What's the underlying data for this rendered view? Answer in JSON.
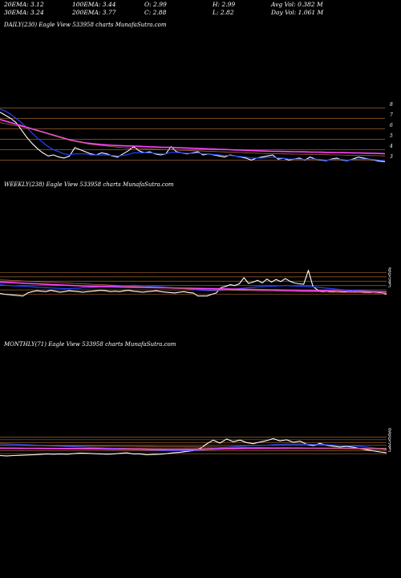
{
  "stats": {
    "ema20": "20EMA: 3.12",
    "ema100": "100EMA: 3.44",
    "open": "O: 2.99",
    "high": "H: 2.99",
    "avg_vol": "Avg Vol: 0.382  M",
    "ema30": "30EMA: 3.24",
    "ema200": "200EMA: 3.77",
    "close": "C: 2.88",
    "low": "L: 2.82",
    "day_vol": "Day Vol: 1.061  M"
  },
  "panels": {
    "daily_title": "DAILY(230) Eagle  View  533958  charts MunafaSutra.com",
    "weekly_title": "WEEKLY(238) Eagle  View  533958  charts MunafaSutra.com",
    "monthly_title": "MONTHLY(71) Eagle  View  533958  charts MunafaSutra.com"
  },
  "colors": {
    "price": "#ffffff",
    "ema_blue": "#2244ff",
    "ema_magenta": "#ff44ff",
    "ema_slow": "#aa6644",
    "level_line": "#a0622a",
    "background": "#000000"
  },
  "chart_data": [
    {
      "type": "line",
      "title": "DAILY(230) Eagle  View  533958  charts MunafaSutra.com",
      "y_ticks": [
        "8",
        "7",
        "6",
        "5",
        "4",
        "3"
      ],
      "ylim": [
        2.5,
        8.5
      ],
      "levels": [
        8,
        7,
        6,
        5,
        4,
        3
      ],
      "series": [
        {
          "key": "price",
          "color": "#ffffff",
          "values": [
            7.6,
            7.3,
            7.0,
            6.6,
            5.9,
            5.2,
            4.6,
            4.1,
            3.7,
            3.4,
            3.5,
            3.3,
            3.2,
            3.4,
            4.2,
            4.0,
            3.8,
            3.6,
            3.5,
            3.7,
            3.6,
            3.4,
            3.3,
            3.6,
            3.9,
            4.3,
            3.9,
            3.7,
            3.8,
            3.6,
            3.5,
            3.6,
            4.3,
            3.8,
            3.7,
            3.6,
            3.7,
            3.8,
            3.5,
            3.6,
            3.5,
            3.4,
            3.3,
            3.5,
            3.4,
            3.3,
            3.2,
            3.0,
            3.2,
            3.3,
            3.4,
            3.5,
            3.1,
            3.2,
            3.0,
            3.1,
            3.2,
            3.0,
            3.3,
            3.1,
            3.0,
            2.95,
            3.1,
            3.2,
            3.0,
            2.95,
            3.1,
            3.3,
            3.2,
            3.1,
            3.0,
            2.9,
            2.85
          ]
        },
        {
          "key": "ema_fast",
          "color": "#2244ff",
          "values": [
            7.9,
            7.7,
            7.4,
            7.0,
            6.6,
            6.1,
            5.6,
            5.1,
            4.7,
            4.3,
            4.0,
            3.8,
            3.6,
            3.5,
            3.6,
            3.6,
            3.6,
            3.5,
            3.5,
            3.5,
            3.5,
            3.45,
            3.4,
            3.45,
            3.55,
            3.7,
            3.7,
            3.7,
            3.7,
            3.65,
            3.6,
            3.6,
            3.75,
            3.75,
            3.7,
            3.65,
            3.65,
            3.7,
            3.6,
            3.6,
            3.55,
            3.5,
            3.45,
            3.45,
            3.4,
            3.35,
            3.3,
            3.2,
            3.2,
            3.2,
            3.25,
            3.3,
            3.2,
            3.2,
            3.1,
            3.1,
            3.1,
            3.05,
            3.1,
            3.1,
            3.05,
            3.0,
            3.05,
            3.1,
            3.05,
            3.0,
            3.05,
            3.1,
            3.1,
            3.1,
            3.05,
            3.0,
            2.95
          ]
        },
        {
          "key": "ema_mid",
          "color": "#ff44ff",
          "values": [
            6.9,
            6.75,
            6.6,
            6.45,
            6.3,
            6.15,
            6.0,
            5.85,
            5.7,
            5.55,
            5.4,
            5.25,
            5.1,
            4.95,
            4.85,
            4.75,
            4.65,
            4.6,
            4.55,
            4.5,
            4.45,
            4.42,
            4.4,
            4.38,
            4.36,
            4.35,
            4.33,
            4.3,
            4.28,
            4.26,
            4.24,
            4.22,
            4.22,
            4.2,
            4.18,
            4.16,
            4.14,
            4.12,
            4.1,
            4.08,
            4.06,
            4.04,
            4.02,
            4.0,
            3.98,
            3.96,
            3.94,
            3.92,
            3.9,
            3.88,
            3.86,
            3.85,
            3.84,
            3.83,
            3.82,
            3.81,
            3.8,
            3.79,
            3.78,
            3.77,
            3.76,
            3.75,
            3.74,
            3.73,
            3.72,
            3.71,
            3.7,
            3.69,
            3.68,
            3.67,
            3.66,
            3.64,
            3.62
          ]
        },
        {
          "key": "ema_slow",
          "color": "#aa6644",
          "values": [
            6.6,
            6.5,
            6.4,
            6.3,
            6.2,
            6.1,
            5.95,
            5.8,
            5.65,
            5.5,
            5.35,
            5.2,
            5.05,
            4.9,
            4.8,
            4.7,
            4.6,
            4.5,
            4.45,
            4.4,
            4.35,
            4.3,
            4.25,
            4.2,
            4.17,
            4.15,
            4.12,
            4.1,
            4.08,
            4.05,
            4.02,
            4.0,
            3.99,
            3.97,
            3.95,
            3.93,
            3.91,
            3.89,
            3.87,
            3.85,
            3.83,
            3.81,
            3.79,
            3.77,
            3.75,
            3.73,
            3.71,
            3.69,
            3.67,
            3.65,
            3.63,
            3.62,
            3.61,
            3.6,
            3.59,
            3.58,
            3.57,
            3.56,
            3.55,
            3.54,
            3.53,
            3.52,
            3.51,
            3.5,
            3.49,
            3.48,
            3.47,
            3.46,
            3.45,
            3.44,
            3.43,
            3.42,
            3.41
          ]
        }
      ]
    },
    {
      "type": "line",
      "title": "WEEKLY(238) Eagle  View  533958  charts MunafaSutra.com",
      "y_ticks": [
        "8",
        "6",
        "5",
        "4",
        "3"
      ],
      "ylim": [
        2.0,
        9.0
      ],
      "levels": [
        8,
        7,
        6,
        5,
        4,
        3
      ],
      "series": [
        {
          "key": "price",
          "color": "#ffffff",
          "values": [
            3.2,
            3.0,
            2.9,
            2.8,
            2.7,
            2.6,
            3.3,
            3.6,
            3.8,
            3.7,
            3.6,
            3.9,
            3.7,
            3.5,
            3.6,
            3.8,
            3.7,
            3.6,
            3.5,
            3.6,
            3.7,
            3.8,
            3.9,
            3.8,
            3.6,
            3.7,
            3.6,
            3.8,
            3.9,
            3.7,
            3.6,
            3.5,
            3.6,
            3.7,
            3.8,
            3.6,
            3.5,
            3.4,
            3.3,
            3.5,
            3.6,
            3.4,
            3.3,
            2.6,
            2.6,
            2.6,
            3.0,
            3.3,
            4.5,
            4.8,
            5.2,
            5.0,
            5.4,
            6.8,
            5.5,
            5.8,
            6.2,
            5.6,
            6.5,
            5.8,
            6.4,
            5.9,
            6.6,
            6.0,
            5.6,
            5.4,
            5.3,
            8.5,
            4.8,
            4.0,
            3.6,
            3.8,
            3.5,
            3.7,
            3.6,
            3.5,
            3.8,
            3.6,
            3.7,
            3.5,
            3.4,
            3.6,
            3.5,
            3.3,
            3.0
          ]
        },
        {
          "key": "ema_fast",
          "color": "#2244ff",
          "values": [
            5.2,
            5.1,
            5.0,
            4.95,
            4.9,
            4.85,
            4.8,
            4.7,
            4.6,
            4.55,
            4.5,
            4.45,
            4.4,
            4.35,
            4.3,
            4.3,
            4.35,
            4.4,
            4.5,
            4.55,
            4.6,
            4.65,
            4.7,
            4.75,
            4.8,
            4.85,
            4.9,
            4.95,
            5.0,
            5.05,
            5.0,
            4.95,
            4.9,
            4.85,
            4.8,
            4.7,
            4.6,
            4.5,
            4.4,
            4.35,
            4.3,
            4.2,
            4.1,
            4.0,
            3.9,
            3.85,
            3.8,
            3.85,
            3.9,
            4.0,
            4.1,
            4.2,
            4.3,
            4.4,
            4.5,
            4.6,
            4.7,
            4.75,
            4.8,
            4.85,
            4.9,
            4.95,
            5.0,
            4.95,
            4.9,
            4.85,
            4.8,
            4.75,
            4.7,
            4.6,
            4.5,
            4.4,
            4.3,
            4.2,
            4.1,
            4.0,
            3.95,
            3.9,
            3.85,
            3.8,
            3.75,
            3.7,
            3.65,
            3.6,
            3.55
          ]
        },
        {
          "key": "ema_mid",
          "color": "#ff44ff",
          "values": [
            5.8,
            5.75,
            5.7,
            5.65,
            5.6,
            5.55,
            5.5,
            5.45,
            5.4,
            5.35,
            5.3,
            5.25,
            5.2,
            5.15,
            5.1,
            5.05,
            5.0,
            4.95,
            4.9,
            4.85,
            4.8,
            4.78,
            4.76,
            4.74,
            4.72,
            4.7,
            4.68,
            4.66,
            4.64,
            4.62,
            4.6,
            4.58,
            4.56,
            4.54,
            4.52,
            4.5,
            4.48,
            4.46,
            4.44,
            4.42,
            4.4,
            4.38,
            4.36,
            4.34,
            4.32,
            4.3,
            4.28,
            4.26,
            4.24,
            4.22,
            4.2,
            4.18,
            4.16,
            4.14,
            4.12,
            4.1,
            4.08,
            4.06,
            4.04,
            4.02,
            4.0,
            3.98,
            3.96,
            3.94,
            3.92,
            3.9,
            3.88,
            3.86,
            3.84,
            3.82,
            3.8,
            3.78,
            3.76,
            3.74,
            3.72,
            3.7,
            3.68,
            3.66,
            3.64,
            3.62,
            3.6,
            3.58,
            3.56,
            3.54,
            3.52
          ]
        },
        {
          "key": "ema_slow",
          "color": "#aa6644",
          "values": [
            6.3,
            6.25,
            6.2,
            6.15,
            6.1,
            6.05,
            6.0,
            5.95,
            5.9,
            5.85,
            5.8,
            5.75,
            5.7,
            5.65,
            5.6,
            5.55,
            5.5,
            5.45,
            5.4,
            5.35,
            5.3,
            5.25,
            5.2,
            5.15,
            5.1,
            5.05,
            5.0,
            4.95,
            4.9,
            4.85,
            4.8,
            4.75,
            4.7,
            4.65,
            4.6,
            4.55,
            4.5,
            4.45,
            4.4,
            4.35,
            4.3,
            4.25,
            4.2,
            4.15,
            4.1,
            4.05,
            4.0,
            3.98,
            3.96,
            3.94,
            3.92,
            3.9,
            3.88,
            3.86,
            3.84,
            3.82,
            3.8,
            3.78,
            3.76,
            3.74,
            3.72,
            3.7,
            3.68,
            3.66,
            3.64,
            3.62,
            3.6,
            3.58,
            3.56,
            3.54,
            3.52,
            3.5,
            3.48,
            3.46,
            3.44,
            3.42,
            3.4,
            3.38,
            3.36,
            3.34,
            3.32,
            3.3,
            3.28,
            3.26,
            3.24
          ]
        }
      ]
    },
    {
      "type": "line",
      "title": "MONTHLY(71) Eagle  View  533958  charts MunafaSutra.com",
      "y_ticks": [
        "9",
        "8",
        "6",
        "5",
        "4",
        "3"
      ],
      "ylim": [
        1.0,
        12.0
      ],
      "levels": [
        9,
        8,
        7,
        6,
        5,
        4,
        3
      ],
      "series": [
        {
          "key": "price",
          "color": "#ffffff",
          "values": [
            2.3,
            2.2,
            2.3,
            2.4,
            2.5,
            2.6,
            2.7,
            2.9,
            2.8,
            2.9,
            2.8,
            3.0,
            3.2,
            3.1,
            3.0,
            2.9,
            2.8,
            2.9,
            3.1,
            3.3,
            2.9,
            2.9,
            2.6,
            2.7,
            2.8,
            3.0,
            3.3,
            3.5,
            3.8,
            4.1,
            4.8,
            6.5,
            7.9,
            6.8,
            8.3,
            7.3,
            7.9,
            7.0,
            6.6,
            7.2,
            7.7,
            8.4,
            7.6,
            8.0,
            7.1,
            7.5,
            6.4,
            5.9,
            6.7,
            6.0,
            5.7,
            5.4,
            5.6,
            5.3,
            4.8,
            4.4,
            4.0,
            3.6,
            3.3
          ]
        },
        {
          "key": "ema_fast",
          "color": "#2244ff",
          "values": [
            6.6,
            6.5,
            6.4,
            6.3,
            6.2,
            6.1,
            6.0,
            5.9,
            5.8,
            5.7,
            5.6,
            5.5,
            5.4,
            5.3,
            5.2,
            5.1,
            5.0,
            4.9,
            4.8,
            4.7,
            4.6,
            4.5,
            4.4,
            4.3,
            4.2,
            4.15,
            4.1,
            4.1,
            4.15,
            4.2,
            4.3,
            4.5,
            4.8,
            5.0,
            5.3,
            5.5,
            5.7,
            5.8,
            5.85,
            5.9,
            6.0,
            6.2,
            6.3,
            6.4,
            6.4,
            6.45,
            6.4,
            6.3,
            6.3,
            6.2,
            6.1,
            6.0,
            5.9,
            5.8,
            5.6,
            5.4,
            5.1,
            4.8,
            4.4
          ]
        },
        {
          "key": "ema_mid",
          "color": "#ff44ff",
          "values": [
            5.0,
            4.98,
            4.96,
            4.94,
            4.92,
            4.9,
            4.88,
            4.86,
            4.84,
            4.82,
            4.8,
            4.78,
            4.76,
            4.74,
            4.72,
            4.7,
            4.68,
            4.66,
            4.64,
            4.62,
            4.6,
            4.58,
            4.56,
            4.54,
            4.52,
            4.5,
            4.5,
            4.5,
            4.52,
            4.54,
            4.56,
            4.6,
            4.65,
            4.7,
            4.75,
            4.8,
            4.85,
            4.9,
            4.92,
            4.94,
            4.96,
            4.98,
            5.0,
            5.0,
            5.0,
            5.0,
            4.98,
            4.96,
            4.94,
            4.92,
            4.9,
            4.88,
            4.86,
            4.84,
            4.82,
            4.8,
            4.76,
            4.72,
            4.68
          ]
        },
        {
          "key": "ema_slow",
          "color": "#aa6644",
          "values": [
            6.0,
            5.98,
            5.96,
            5.94,
            5.92,
            5.9,
            5.88,
            5.86,
            5.84,
            5.82,
            5.8,
            5.78,
            5.76,
            5.74,
            5.72,
            5.7,
            5.68,
            5.66,
            5.64,
            5.62,
            5.6,
            5.58,
            5.56,
            5.54,
            5.52,
            5.5,
            5.48,
            5.46,
            5.44,
            5.42,
            5.4,
            5.38,
            5.36,
            5.34,
            5.32,
            5.3,
            5.28,
            5.26,
            5.24,
            5.22,
            5.2,
            5.18,
            5.16,
            5.14,
            5.12,
            5.1,
            5.08,
            5.06,
            5.04,
            5.02,
            5.0,
            4.98,
            4.96,
            4.94,
            4.92,
            4.9,
            4.88,
            4.86,
            4.84
          ]
        }
      ]
    }
  ]
}
